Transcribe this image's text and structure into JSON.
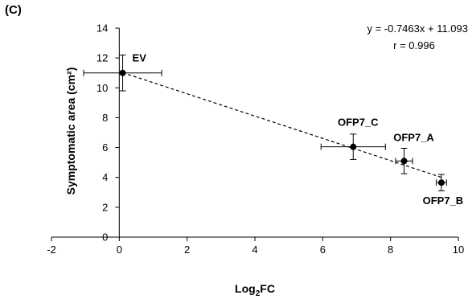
{
  "panel_label": "(C)",
  "chart_data": {
    "type": "scatter",
    "xlabel_main": "Log",
    "xlabel_sub": "2",
    "xlabel_tail": "FC",
    "ylabel": "Symptomatic area (cm²)",
    "xlim": [
      -2,
      10
    ],
    "ylim": [
      0,
      14
    ],
    "x_ticks": [
      "-2",
      "0",
      "2",
      "4",
      "6",
      "8",
      "10"
    ],
    "y_ticks": [
      "0",
      "2",
      "4",
      "6",
      "8",
      "10",
      "12",
      "14"
    ],
    "grid": false,
    "points": [
      {
        "label": "EV",
        "x": 0.1,
        "y": 11.0,
        "x_err": 1.15,
        "y_err": 1.2
      },
      {
        "label": "OFP7_C",
        "x": 6.9,
        "y": 6.05,
        "x_err": 0.95,
        "y_err": 0.85
      },
      {
        "label": "OFP7_A",
        "x": 8.4,
        "y": 5.1,
        "x_err": 0.25,
        "y_err": 0.85
      },
      {
        "label": "OFP7_B",
        "x": 9.5,
        "y": 3.65,
        "x_err": 0.15,
        "y_err": 0.55
      }
    ],
    "trendline": {
      "slope": -0.7463,
      "intercept": 11.093,
      "style": "dashed",
      "x_range": [
        0.1,
        9.5
      ]
    },
    "equation_text": "y = -0.7463x + 11.093",
    "r_text": "r = 0.996"
  }
}
